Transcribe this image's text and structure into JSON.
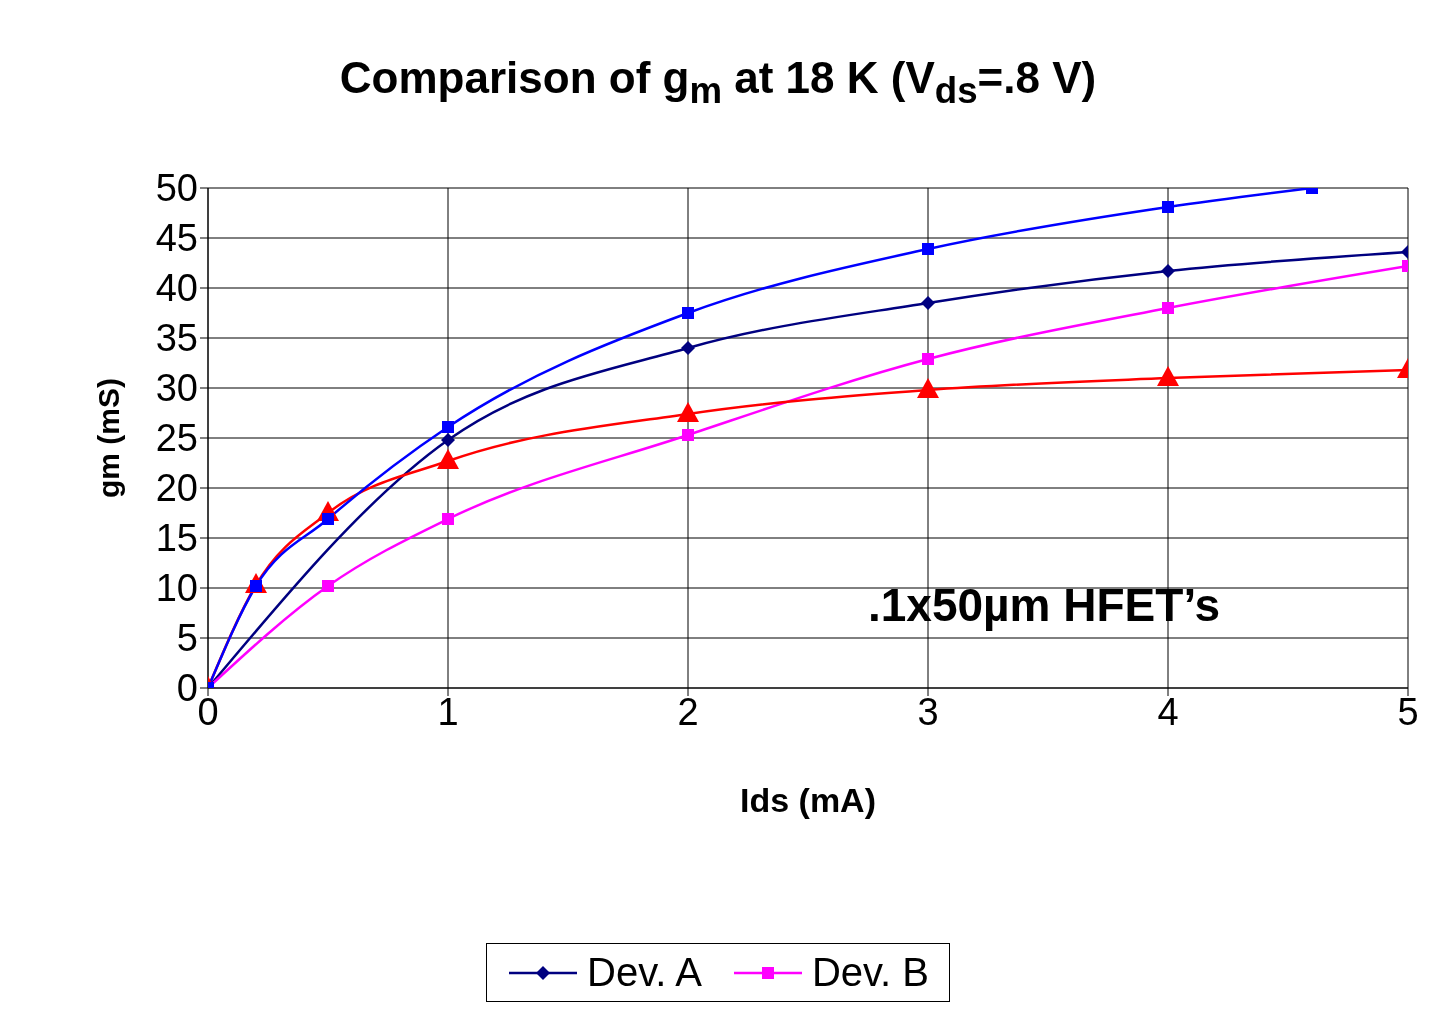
{
  "chart_data": {
    "type": "line",
    "title": "Comparison of g$_{m}$ at 18 K (V$_{ds}$=.8 V)",
    "xlabel": "Ids (mA)",
    "ylabel": "gm (mS)",
    "xlim": [
      0,
      5
    ],
    "xticks": [
      0,
      1,
      2,
      3,
      4,
      5
    ],
    "ylim": [
      0,
      50
    ],
    "yticks": [
      0,
      5,
      10,
      15,
      20,
      25,
      30,
      35,
      40,
      45,
      50
    ],
    "grid": true,
    "legend": "bottom",
    "annotations": [
      ".1x50µm HFET’s"
    ],
    "series": [
      {
        "name": "Dev. A",
        "color": "#000080",
        "marker": "diamond",
        "x": [
          0,
          1,
          2,
          3,
          4,
          5
        ],
        "values": [
          0,
          24.8,
          34,
          38.5,
          41.7,
          43.6
        ]
      },
      {
        "name": "Dev. B",
        "color": "#ff00ff",
        "marker": "square",
        "x": [
          0,
          0.5,
          1,
          2,
          3,
          4,
          5
        ],
        "values": [
          0,
          10.2,
          16.9,
          25.3,
          32.9,
          38,
          42.2
        ]
      },
      {
        "color": "#ff0000",
        "marker": "triangle",
        "x": [
          0,
          0.2,
          0.5,
          1,
          2,
          3,
          4,
          5
        ],
        "values": [
          0,
          10.3,
          17.5,
          22.7,
          27.4,
          29.8,
          31,
          31.8
        ]
      },
      {
        "color": "#0000ff",
        "marker": "square",
        "x": [
          0,
          0.2,
          0.5,
          1,
          2,
          3,
          4,
          4.6
        ],
        "values": [
          0,
          10.2,
          16.9,
          26.1,
          37.5,
          43.9,
          48.1,
          50
        ]
      }
    ]
  }
}
